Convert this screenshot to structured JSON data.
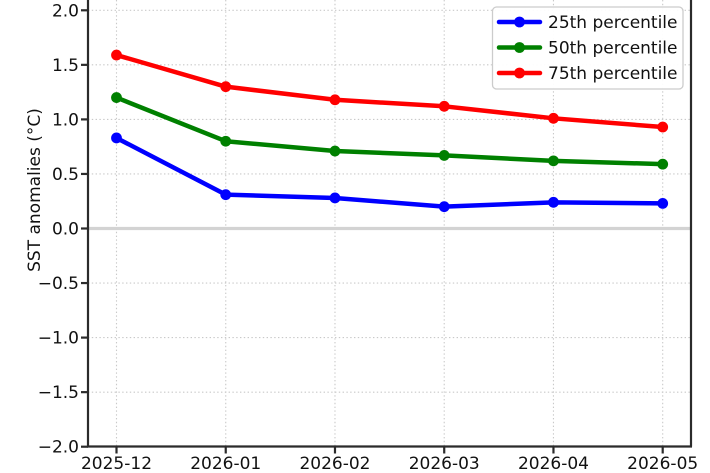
{
  "chart_data": {
    "type": "line",
    "title": "",
    "xlabel": "",
    "ylabel": "SST anomalies (°C)",
    "categories": [
      "2025-12",
      "2026-01",
      "2026-02",
      "2026-03",
      "2026-04",
      "2026-05"
    ],
    "series": [
      {
        "name": "25th percentile",
        "color": "#0000ff",
        "values": [
          0.83,
          0.31,
          0.28,
          0.2,
          0.24,
          0.23
        ]
      },
      {
        "name": "50th percentile",
        "color": "#008000",
        "values": [
          1.2,
          0.8,
          0.71,
          0.67,
          0.62,
          0.59
        ]
      },
      {
        "name": "75th percentile",
        "color": "#ff0000",
        "values": [
          1.59,
          1.3,
          1.18,
          1.12,
          1.01,
          0.93
        ]
      }
    ],
    "yticks": [
      2.0,
      1.5,
      1.0,
      0.5,
      0.0,
      -0.5,
      -1.0,
      -1.5,
      -2.0
    ],
    "ytick_labels": [
      "2.0",
      "1.5",
      "1.0",
      "0.5",
      "0.0",
      "−0.5",
      "−1.0",
      "−1.5",
      "−2.0"
    ],
    "ylim": [
      -2.0,
      2.0
    ],
    "grid": true,
    "grid_style": "dotted",
    "zero_line": true,
    "legend_position": "upper right",
    "legend_labels": [
      "25th percentile",
      "50th percentile",
      "75th percentile"
    ],
    "colors": {
      "grid": "#c9c9c9",
      "zero_line": "#d3d3d3",
      "spine": "#2b2b2b",
      "background": "#ffffff",
      "legend_border": "#cccccc"
    }
  }
}
